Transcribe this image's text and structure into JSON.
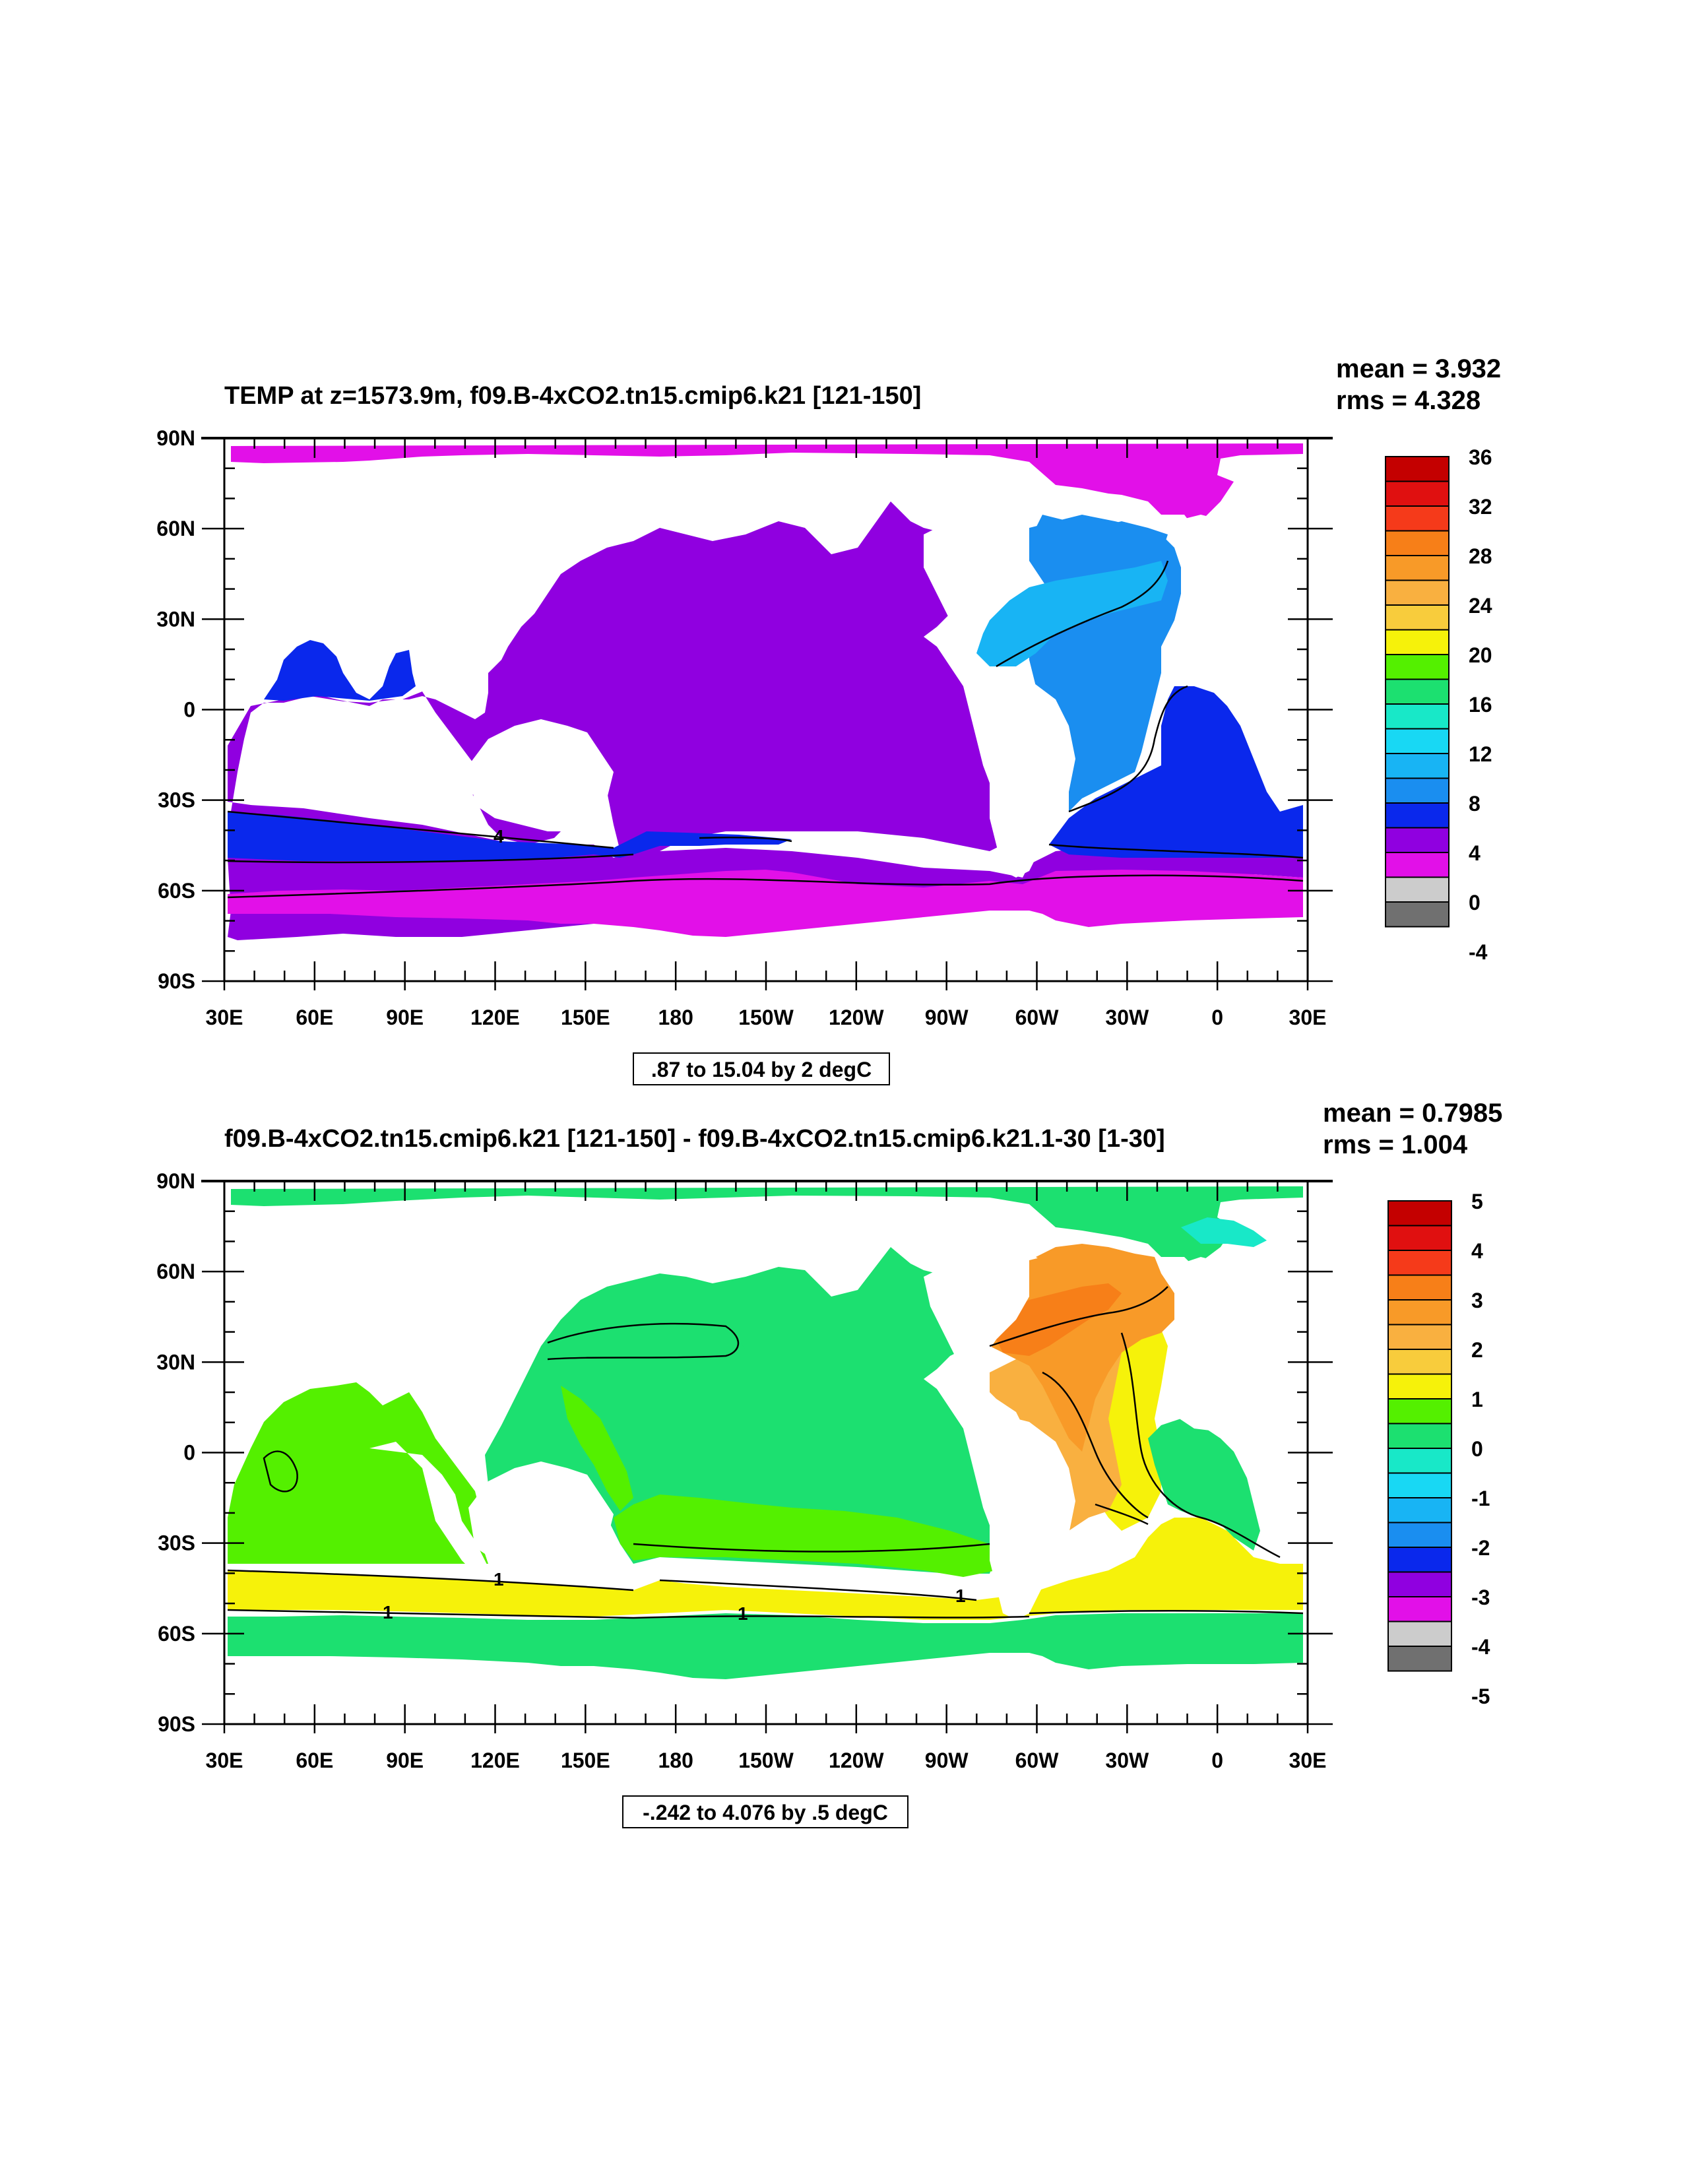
{
  "panels": [
    {
      "title": "TEMP at z=1573.9m, f09.B-4xCO2.tn15.cmip6.k21 [121-150]",
      "stats": {
        "mean": "mean = 3.932",
        "rms": "rms = 4.328"
      },
      "info_box": ".87 to 15.04 by 2 degC",
      "colorbar": {
        "labels": [
          "36",
          "32",
          "28",
          "24",
          "20",
          "16",
          "12",
          "8",
          "4",
          "0",
          "-4"
        ],
        "colors": [
          "#c40000",
          "#e01010",
          "#f53a1a",
          "#f77f18",
          "#f89a28",
          "#f9b040",
          "#f8cc3c",
          "#f6f20a",
          "#54f000",
          "#1ce070",
          "#18e8c8",
          "#18d8f4",
          "#18b4f4",
          "#1a8ef0",
          "#0a28ec",
          "#9000e0",
          "#e210e8",
          "#cccccc",
          "#707070"
        ]
      },
      "contour_labels": [
        "4"
      ]
    },
    {
      "title": "f09.B-4xCO2.tn15.cmip6.k21 [121-150] - f09.B-4xCO2.tn15.cmip6.k21.1-30 [1-30]",
      "stats": {
        "mean": "mean = 0.7985",
        "rms": "rms = 1.004"
      },
      "info_box": "-.242 to 4.076 by .5 degC",
      "colorbar": {
        "labels": [
          "5",
          "4",
          "3",
          "2",
          "1",
          "0",
          "-1",
          "-2",
          "-3",
          "-4",
          "-5"
        ],
        "colors": [
          "#c40000",
          "#e01010",
          "#f53a1a",
          "#f77f18",
          "#f89a28",
          "#f9b040",
          "#f8cc3c",
          "#f6f20a",
          "#54f000",
          "#1ce070",
          "#18e8c8",
          "#18d8f4",
          "#18b4f4",
          "#1a8ef0",
          "#0a28ec",
          "#9000e0",
          "#e210e8",
          "#cccccc",
          "#707070"
        ]
      },
      "contour_labels": [
        "1",
        "1",
        "1",
        "1"
      ]
    }
  ],
  "axes": {
    "x_labels": [
      "30E",
      "60E",
      "90E",
      "120E",
      "150E",
      "180",
      "150W",
      "120W",
      "90W",
      "60W",
      "30W",
      "0",
      "30E"
    ],
    "y_labels": [
      "90N",
      "60N",
      "30N",
      "0",
      "30S",
      "60S",
      "90S"
    ]
  }
}
